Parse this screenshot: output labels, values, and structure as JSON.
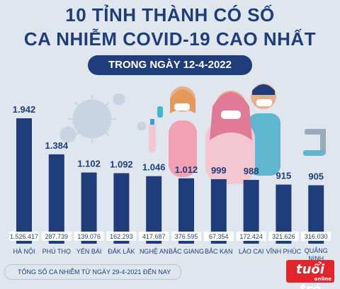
{
  "title_line1": "10 TỈNH THÀNH CÓ SỐ",
  "title_line2": "CA NHIỄM COVID-19 CAO NHẤT",
  "subtitle": "TRONG NGÀY 12-4-2022",
  "footnote": "TỔNG SỐ CA NHIỄM TỪ NGÀY 29-4-2021 ĐẾN NAY",
  "logo": {
    "text": "tuổi trẻ",
    "sub": "online"
  },
  "colors": {
    "bar": "#1f3d7a",
    "background": "#dfe6ee",
    "accent": "#e0252b"
  },
  "chart_data": {
    "type": "bar",
    "categories": [
      "HÀ NỘI",
      "PHÚ THỌ",
      "YÊN BÁI",
      "ĐẮK LẮK",
      "NGHỆ AN",
      "BẮC GIANG",
      "BẮC KẠN",
      "LÀO CAI",
      "VĨNH PHÚC",
      "QUẢNG NINH"
    ],
    "values": [
      1942,
      1384,
      1102,
      1092,
      1046,
      1012,
      999,
      988,
      915,
      905
    ],
    "value_labels": [
      "1.942",
      "1.384",
      "1.102",
      "1.092",
      "1.046",
      "1.012",
      "999",
      "988",
      "915",
      "905"
    ],
    "total_labels": [
      "1.526.417",
      "287.739",
      "139.076",
      "162.293",
      "417.687",
      "376.595",
      "67.354",
      "172.424",
      "321.626",
      "316.030"
    ],
    "title": "10 TỈNH THÀNH CÓ SỐ CA NHIỄM COVID-19 CAO NHẤT",
    "subtitle": "TRONG NGÀY 12-4-2022",
    "xlabel": "",
    "ylabel": "",
    "ylim": [
      0,
      1942
    ],
    "grid": false,
    "legend": "none"
  }
}
